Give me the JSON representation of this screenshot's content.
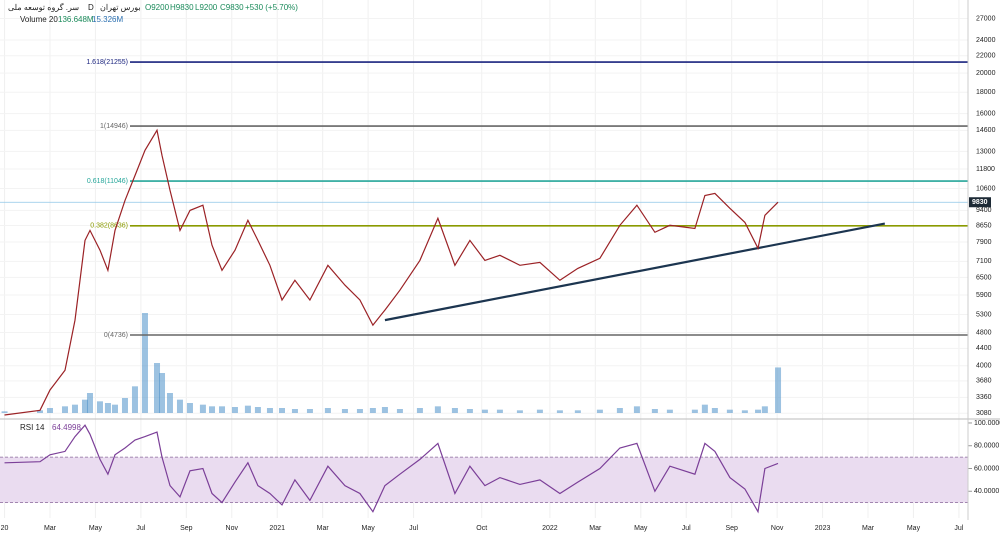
{
  "header": {
    "symbol": "سر. گروه توسعه ملی",
    "interval": "D",
    "exchange": "بورس تهران",
    "ohlc": [
      "O9200",
      "H9830",
      "L9200",
      "C9830",
      "+530 (+5.70%)"
    ]
  },
  "chart_data": [
    {
      "type": "line",
      "color": "#9b2226",
      "log": true,
      "grid": true,
      "x": [
        0,
        1.56,
        2.0,
        2.66,
        3.1,
        3.54,
        3.76,
        4.2,
        4.55,
        4.86,
        5.3,
        5.74,
        6.18,
        6.71,
        6.93,
        7.28,
        7.72,
        8.16,
        8.73,
        9.13,
        9.57,
        10.14,
        10.71,
        11.15,
        11.68,
        12.21,
        12.78,
        13.44,
        14.23,
        14.98,
        15.64,
        16.21,
        16.74,
        17.4,
        18.28,
        19.07,
        19.82,
        20.48,
        21.14,
        21.8,
        22.68,
        23.56,
        24.44,
        25.23,
        26.2,
        27.08,
        27.83,
        28.62,
        29.28,
        30.38,
        30.82,
        31.26,
        31.92,
        32.58,
        33.16,
        33.46,
        34.04
      ],
      "values": [
        3050,
        3130,
        3500,
        3900,
        5140,
        7970,
        8420,
        7550,
        6760,
        8420,
        9930,
        11390,
        13080,
        14600,
        12720,
        10500,
        8420,
        9400,
        9670,
        7760,
        6760,
        7550,
        8900,
        7970,
        6950,
        5740,
        6400,
        5740,
        6950,
        6230,
        5740,
        5000,
        5430,
        6060,
        7140,
        9000,
        6950,
        7970,
        7140,
        7340,
        6950,
        7060,
        6400,
        6830,
        7220,
        8660,
        9670,
        8330,
        8660,
        8510,
        10200,
        10320,
        9510,
        8800,
        7630,
        9150,
        9830
      ],
      "ylim": [
        3000,
        29900
      ],
      "yticks": [
        27000,
        24000,
        22000,
        20000,
        18000,
        16000,
        14600,
        13000,
        11800,
        10600,
        9400,
        8650,
        7900,
        7100,
        6500,
        5900,
        5300,
        4800,
        4400,
        4000,
        3680,
        3360,
        3080
      ],
      "xlim": [
        -0.2,
        42.4
      ],
      "xticks": [
        {
          "value": 0,
          "label": "20"
        },
        {
          "value": 2,
          "label": "Mar"
        },
        {
          "value": 4,
          "label": "May"
        },
        {
          "value": 6,
          "label": "Jul"
        },
        {
          "value": 8,
          "label": "Sep"
        },
        {
          "value": 10,
          "label": "Nov"
        },
        {
          "value": 12,
          "label": "2021"
        },
        {
          "value": 14,
          "label": "Mar"
        },
        {
          "value": 16,
          "label": "May"
        },
        {
          "value": 18,
          "label": "Jul"
        },
        {
          "value": 21,
          "label": "Oct"
        },
        {
          "value": 24,
          "label": "2022"
        },
        {
          "value": 26,
          "label": "Mar"
        },
        {
          "value": 28,
          "label": "May"
        },
        {
          "value": 30,
          "label": "Jul"
        },
        {
          "value": 32,
          "label": "Sep"
        },
        {
          "value": 34,
          "label": "Nov"
        },
        {
          "value": 36,
          "label": "2023"
        },
        {
          "value": 38,
          "label": "Mar"
        },
        {
          "value": 40,
          "label": "May"
        },
        {
          "value": 42,
          "label": "Jul"
        }
      ],
      "fib_levels": [
        {
          "label": "1.618(21255)",
          "value": 21255,
          "color": "#1a237e"
        },
        {
          "label": "1(14946)",
          "value": 14946,
          "color": "#666666"
        },
        {
          "label": "0.618(11046)",
          "value": 11046,
          "color": "#26a69a"
        },
        {
          "label": "0.382(8636)",
          "value": 8636,
          "color": "#8a9a00"
        },
        {
          "label": "0(4736)",
          "value": 4736,
          "color": "#666666"
        }
      ],
      "trendline": {
        "x": [
          16.74,
          38.74
        ],
        "values": [
          5140,
          8740
        ],
        "color": "#1c3550"
      },
      "last_price_color": "#8ec5e8",
      "volume": {
        "label": "Volume 20",
        "last_label": "136.648M",
        "ma_label": "15.326M",
        "color": "#4a90c8",
        "values": [
          5,
          8,
          15,
          20,
          25,
          40,
          60,
          35,
          30,
          25,
          45,
          80,
          300,
          150,
          120,
          60,
          40,
          30,
          25,
          20,
          20,
          18,
          22,
          18,
          15,
          15,
          12,
          12,
          15,
          12,
          12,
          15,
          18,
          12,
          15,
          20,
          15,
          12,
          10,
          10,
          8,
          10,
          8,
          8,
          10,
          15,
          20,
          12,
          10,
          10,
          25,
          15,
          10,
          8,
          10,
          20,
          136.648
        ]
      }
    },
    {
      "type": "line",
      "title": "RSI 14",
      "color": "#7b3f98",
      "x": [
        0,
        1.56,
        2.0,
        2.66,
        3.1,
        3.54,
        3.76,
        4.2,
        4.55,
        4.86,
        5.3,
        5.74,
        6.18,
        6.71,
        6.93,
        7.28,
        7.72,
        8.16,
        8.73,
        9.13,
        9.57,
        10.14,
        10.71,
        11.15,
        11.68,
        12.21,
        12.78,
        13.44,
        14.23,
        14.98,
        15.64,
        16.21,
        16.74,
        17.4,
        18.28,
        19.07,
        19.82,
        20.48,
        21.14,
        21.8,
        22.68,
        23.56,
        24.44,
        25.23,
        26.2,
        27.08,
        27.83,
        28.62,
        29.28,
        30.38,
        30.82,
        31.26,
        31.92,
        32.58,
        33.16,
        33.46,
        34.04
      ],
      "values": [
        65,
        66,
        72,
        75,
        88,
        98,
        90,
        68,
        55,
        72,
        78,
        85,
        88,
        92,
        70,
        45,
        35,
        58,
        60,
        38,
        30,
        48,
        65,
        45,
        38,
        28,
        50,
        32,
        62,
        45,
        38,
        22,
        45,
        55,
        68,
        82,
        38,
        62,
        45,
        52,
        46,
        50,
        38,
        48,
        60,
        78,
        82,
        40,
        62,
        55,
        82,
        75,
        52,
        42,
        22,
        60,
        64.4998
      ],
      "ylim": [
        16.5,
        102.6
      ],
      "yticks": [
        {
          "value": 100,
          "label": "100.0000"
        },
        {
          "value": 80,
          "label": "80.0000"
        },
        {
          "value": 60,
          "label": "60.0000"
        },
        {
          "value": 40,
          "label": "40.0000"
        }
      ],
      "band": [
        30,
        70
      ],
      "band_color": "#eadcf0"
    }
  ]
}
